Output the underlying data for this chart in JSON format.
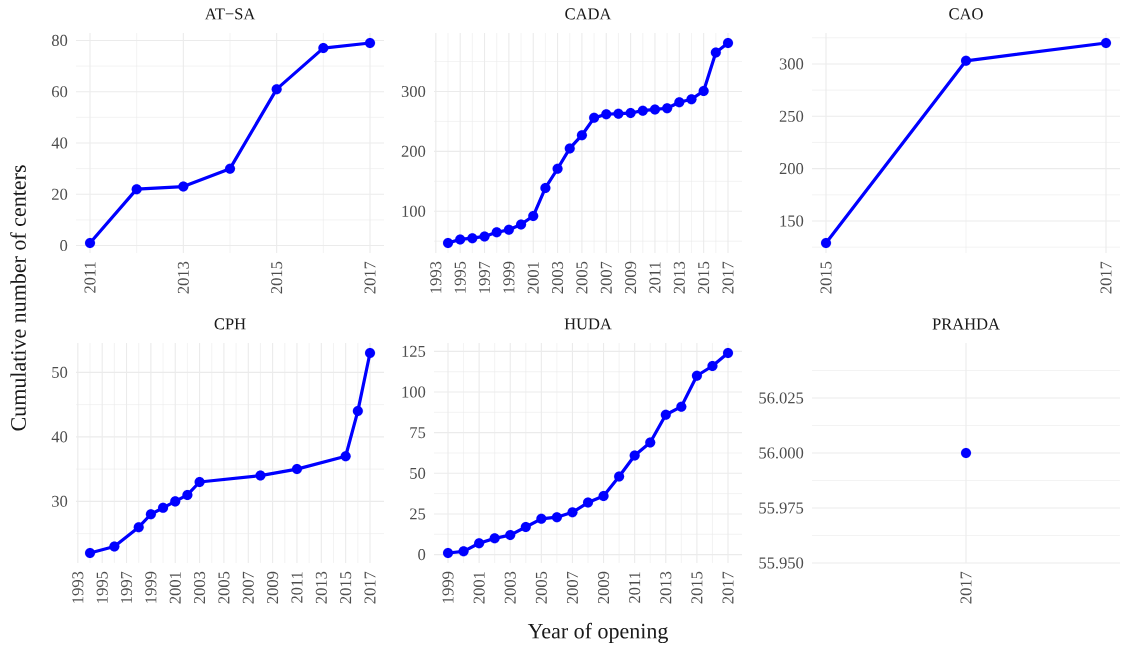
{
  "chart_data": [
    {
      "type": "line",
      "title": "AT−SA",
      "ylabel": "Cumulative number of centers",
      "x": [
        2011,
        2012,
        2013,
        2014,
        2015,
        2016,
        2017
      ],
      "values": [
        1,
        22,
        23,
        30,
        61,
        77,
        79
      ],
      "color": "#0000ff",
      "marker": "circle",
      "grid": true,
      "xlim": [
        2010.7,
        2017.3
      ],
      "ylim": [
        -2.9,
        82.9
      ],
      "xticks": [
        2011,
        {
          "value": 2012,
          "label": null
        },
        2013,
        {
          "value": 2014,
          "label": null
        },
        2015,
        {
          "value": 2016,
          "label": null
        },
        2017
      ],
      "yticks": [
        0,
        {
          "value": 10,
          "label": null
        },
        20,
        {
          "value": 30,
          "label": null
        },
        40,
        {
          "value": 50,
          "label": null
        },
        60,
        {
          "value": 70,
          "label": null
        },
        80
      ]
    },
    {
      "type": "line",
      "title": "CADA",
      "x": [
        1994,
        1995,
        1996,
        1997,
        1998,
        1999,
        2000,
        2001,
        2002,
        2003,
        2004,
        2005,
        2006,
        2007,
        2008,
        2009,
        2010,
        2011,
        2012,
        2013,
        2014,
        2015,
        2016,
        2017
      ],
      "values": [
        47,
        53,
        55,
        58,
        65,
        69,
        78,
        92,
        139,
        171,
        205,
        227,
        256,
        262,
        263,
        264,
        268,
        270,
        272,
        282,
        287,
        301,
        365,
        381
      ],
      "color": "#0000ff",
      "marker": "circle",
      "grid": true,
      "xlim": [
        1992.85,
        2018.15
      ],
      "ylim": [
        30.3,
        397.7
      ],
      "xticks": [
        1993,
        {
          "value": 1994,
          "label": null
        },
        1995,
        {
          "value": 1996,
          "label": null
        },
        1997,
        {
          "value": 1998,
          "label": null
        },
        1999,
        {
          "value": 2000,
          "label": null
        },
        2001,
        {
          "value": 2002,
          "label": null
        },
        2003,
        {
          "value": 2004,
          "label": null
        },
        2005,
        {
          "value": 2006,
          "label": null
        },
        2007,
        {
          "value": 2008,
          "label": null
        },
        2009,
        {
          "value": 2010,
          "label": null
        },
        2011,
        {
          "value": 2012,
          "label": null
        },
        2013,
        {
          "value": 2014,
          "label": null
        },
        2015,
        {
          "value": 2016,
          "label": null
        },
        2017
      ],
      "yticks": [
        {
          "value": 50,
          "label": null
        },
        100,
        {
          "value": 150,
          "label": null
        },
        200,
        {
          "value": 250,
          "label": null
        },
        300,
        {
          "value": 350,
          "label": null
        }
      ]
    },
    {
      "type": "line",
      "title": "CAO",
      "x": [
        2015,
        2016,
        2017
      ],
      "values": [
        129,
        303,
        320
      ],
      "color": "#0000ff",
      "marker": "circle",
      "grid": true,
      "xlim": [
        2014.9,
        2017.1
      ],
      "ylim": [
        119.45,
        329.55
      ],
      "xticks": [
        2015,
        {
          "value": 2016,
          "label": null
        },
        2017
      ],
      "yticks": [
        {
          "value": 125,
          "label": null
        },
        150,
        {
          "value": 175,
          "label": null
        },
        200,
        {
          "value": 225,
          "label": null
        },
        250,
        {
          "value": 275,
          "label": null
        },
        300,
        {
          "value": 325,
          "label": null
        }
      ]
    },
    {
      "type": "line",
      "title": "CPH",
      "x": [
        1994,
        1996,
        1998,
        1999,
        2000,
        2001,
        2002,
        2003,
        2008,
        2011,
        2015,
        2016,
        2017
      ],
      "values": [
        22,
        23,
        26,
        28,
        29,
        30,
        31,
        33,
        34,
        35,
        37,
        44,
        53
      ],
      "color": "#0000ff",
      "marker": "circle",
      "grid": true,
      "xlim": [
        1992.85,
        2018.15
      ],
      "ylim": [
        20.45,
        54.55
      ],
      "xticks": [
        1993,
        {
          "value": 1994,
          "label": null
        },
        1995,
        {
          "value": 1996,
          "label": null
        },
        1997,
        {
          "value": 1998,
          "label": null
        },
        1999,
        {
          "value": 2000,
          "label": null
        },
        2001,
        {
          "value": 2002,
          "label": null
        },
        2003,
        {
          "value": 2004,
          "label": null
        },
        2005,
        {
          "value": 2006,
          "label": null
        },
        2007,
        {
          "value": 2008,
          "label": null
        },
        2009,
        {
          "value": 2010,
          "label": null
        },
        2011,
        {
          "value": 2012,
          "label": null
        },
        2013,
        {
          "value": 2014,
          "label": null
        },
        2015,
        {
          "value": 2016,
          "label": null
        },
        2017
      ],
      "yticks": [
        {
          "value": 25,
          "label": null
        },
        30,
        {
          "value": 35,
          "label": null
        },
        40,
        {
          "value": 45,
          "label": null
        },
        50
      ]
    },
    {
      "type": "line",
      "title": "HUDA",
      "xlabel": "Year of opening",
      "x": [
        1999,
        2000,
        2001,
        2002,
        2003,
        2004,
        2005,
        2006,
        2007,
        2008,
        2009,
        2010,
        2011,
        2012,
        2013,
        2014,
        2015,
        2016,
        2017
      ],
      "values": [
        1,
        2,
        7,
        10,
        12,
        17,
        22,
        23,
        26,
        32,
        36,
        48,
        61,
        69,
        86,
        91,
        110,
        116,
        124
      ],
      "color": "#0000ff",
      "marker": "circle",
      "grid": true,
      "xlim": [
        1998.1,
        2017.9
      ],
      "ylim": [
        -5.15,
        130.15
      ],
      "xticks": [
        1999,
        {
          "value": 2000,
          "label": null
        },
        2001,
        {
          "value": 2002,
          "label": null
        },
        2003,
        {
          "value": 2004,
          "label": null
        },
        2005,
        {
          "value": 2006,
          "label": null
        },
        2007,
        {
          "value": 2008,
          "label": null
        },
        2009,
        {
          "value": 2010,
          "label": null
        },
        2011,
        {
          "value": 2012,
          "label": null
        },
        2013,
        {
          "value": 2014,
          "label": null
        },
        2015,
        {
          "value": 2016,
          "label": null
        },
        2017
      ],
      "yticks": [
        0,
        {
          "value": 12.5,
          "label": null
        },
        25,
        {
          "value": 37.5,
          "label": null
        },
        50,
        {
          "value": 62.5,
          "label": null
        },
        75,
        {
          "value": 87.5,
          "label": null
        },
        100,
        {
          "value": 112.5,
          "label": null
        },
        125
      ]
    },
    {
      "type": "line",
      "title": "PRAHDA",
      "categories": [
        "2017"
      ],
      "values": [
        56
      ],
      "color": "#0000ff",
      "marker": "circle",
      "grid": true,
      "ylim": [
        55.95,
        56.05
      ],
      "yticks": [
        {
          "value": 55.95,
          "label": "55.950"
        },
        {
          "value": 55.9625,
          "label": null
        },
        {
          "value": 55.975,
          "label": "55.975"
        },
        {
          "value": 55.9875,
          "label": null
        },
        {
          "value": 56,
          "label": "56.000"
        },
        {
          "value": 56.0125,
          "label": null
        },
        {
          "value": 56.025,
          "label": "56.025"
        },
        {
          "value": 56.0375,
          "label": null
        }
      ]
    }
  ]
}
